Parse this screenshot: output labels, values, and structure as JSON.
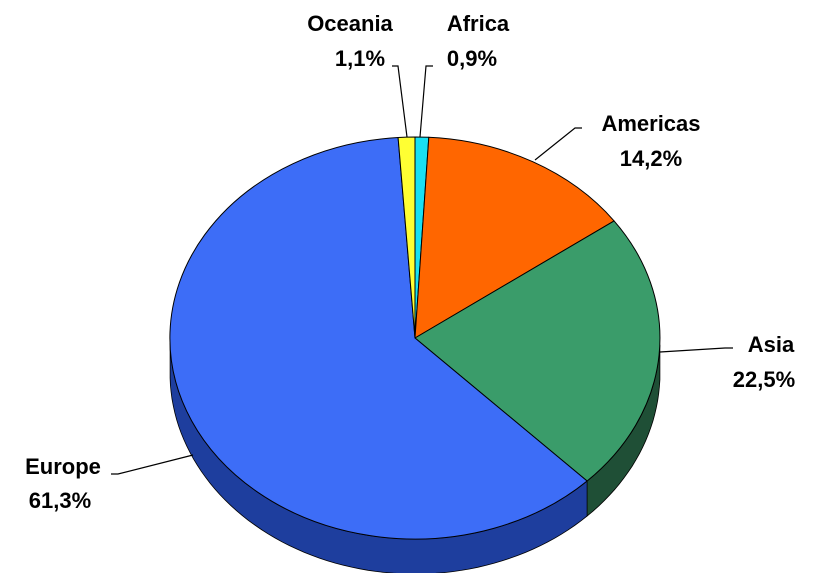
{
  "chart_data": {
    "type": "pie",
    "style": "3d",
    "categories": [
      "Africa",
      "Americas",
      "Asia",
      "Europe",
      "Oceania"
    ],
    "values": [
      0.9,
      14.2,
      22.5,
      61.3,
      1.1
    ],
    "value_labels": [
      "0,9%",
      "14,2%",
      "22,5%",
      "61,3%",
      "1,1%"
    ],
    "colors": [
      "#19E0F2",
      "#FF6600",
      "#3A9C6A",
      "#3D6DF7",
      "#FFFF33"
    ],
    "side_colors": [
      "#0F8B96",
      "#9E3F00",
      "#1F4F36",
      "#1E3E9E",
      "#9E9E10"
    ],
    "title": "",
    "legend": "none",
    "labels": "outside-with-leader-lines"
  }
}
